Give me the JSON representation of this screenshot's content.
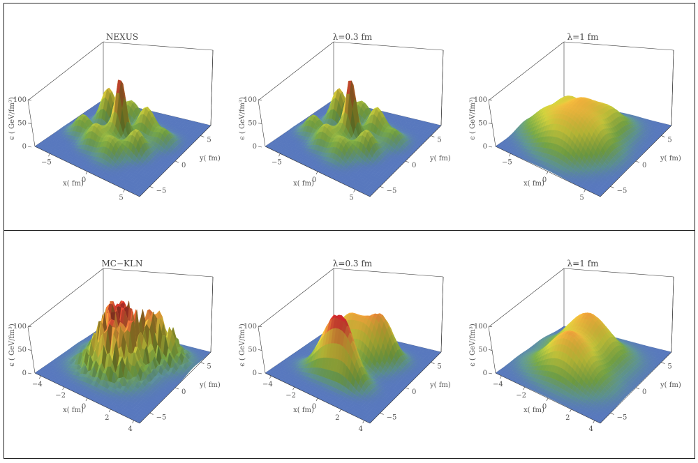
{
  "chart_data": [
    {
      "type": "surface",
      "title": "NEXUS",
      "xlabel": "x( fm)",
      "ylabel": "y( fm)",
      "zlabel": "ϵ ( GeV/fm³)",
      "x_ticks": [
        "−5",
        "0",
        "5"
      ],
      "y_ticks": [
        "5",
        "0",
        "−5"
      ],
      "z_ticks": [
        "100",
        "50",
        "0"
      ],
      "xlim": [
        -7,
        7
      ],
      "ylim": [
        -7,
        7
      ],
      "zlim": [
        0,
        125
      ],
      "peaks": [
        [
          -0.5,
          0.5,
          120,
          0.55
        ],
        [
          -3.5,
          2.5,
          75,
          0.8
        ],
        [
          -1.5,
          4,
          45,
          0.9
        ],
        [
          1.5,
          2.5,
          60,
          0.9
        ],
        [
          2.5,
          -1,
          50,
          0.9
        ],
        [
          -2,
          -2.5,
          45,
          0.9
        ],
        [
          0.5,
          -3,
          40,
          1.0
        ],
        [
          -4.5,
          -1,
          40,
          0.9
        ],
        [
          4,
          2,
          30,
          0.9
        ],
        [
          -1,
          -0.5,
          35,
          0.9
        ]
      ]
    },
    {
      "type": "surface",
      "title": "λ=0.3  fm",
      "xlabel": "x( fm)",
      "ylabel": "y( fm)",
      "zlabel": "ϵ ( GeV/fm³)",
      "x_ticks": [
        "−5",
        "0",
        "5"
      ],
      "y_ticks": [
        "5",
        "0",
        "−5"
      ],
      "z_ticks": [
        "100",
        "50",
        "0"
      ],
      "xlim": [
        -7,
        7
      ],
      "ylim": [
        -7,
        7
      ],
      "zlim": [
        0,
        125
      ],
      "peaks": [
        [
          -0.5,
          0.5,
          118,
          0.55
        ],
        [
          -3.5,
          2.5,
          74,
          0.8
        ],
        [
          -1.5,
          4,
          44,
          0.9
        ],
        [
          1.5,
          2.5,
          59,
          0.9
        ],
        [
          2.5,
          -1,
          49,
          0.9
        ],
        [
          -2,
          -2.5,
          44,
          0.9
        ],
        [
          0.5,
          -3,
          39,
          1.0
        ],
        [
          -4.5,
          -1,
          39,
          0.9
        ],
        [
          4,
          2,
          29,
          0.9
        ],
        [
          -1,
          -0.5,
          34,
          0.9
        ]
      ]
    },
    {
      "type": "surface",
      "title": "λ=1  fm",
      "xlabel": "x( fm)",
      "ylabel": "y( fm)",
      "zlabel": "ϵ ( GeV/fm³)",
      "x_ticks": [
        "−5",
        "0",
        "5"
      ],
      "y_ticks": [
        "5",
        "0",
        "−5"
      ],
      "z_ticks": [
        "100",
        "50",
        "0"
      ],
      "xlim": [
        -7,
        7
      ],
      "ylim": [
        -7,
        7
      ],
      "zlim": [
        0,
        125
      ],
      "peaks": [
        [
          -0.5,
          0.5,
          62,
          1.6
        ],
        [
          -3.5,
          2.5,
          50,
          1.6
        ],
        [
          1.5,
          3,
          48,
          1.6
        ],
        [
          2.5,
          -1,
          46,
          1.6
        ],
        [
          -2,
          -2.5,
          46,
          1.6
        ],
        [
          0.5,
          -3,
          44,
          1.6
        ],
        [
          -4.5,
          -1,
          40,
          1.6
        ]
      ]
    },
    {
      "type": "surface",
      "title": "MC−KLN",
      "xlabel": "x( fm)",
      "ylabel": "y( fm)",
      "zlabel": "ϵ ( GeV/fm³)",
      "x_ticks": [
        "−4",
        "−2",
        "0",
        "2",
        "4"
      ],
      "y_ticks": [
        "5",
        "0",
        "−5"
      ],
      "z_ticks": [
        "100",
        "50",
        "0"
      ],
      "xlim": [
        -4.5,
        4.5
      ],
      "ylim": [
        -7,
        7
      ],
      "zlim": [
        0,
        125
      ],
      "peaks": [
        [
          -0.8,
          1.5,
          95,
          1.3
        ],
        [
          1.6,
          3.5,
          85,
          1.2
        ],
        [
          -0.5,
          -2,
          85,
          1.3
        ],
        [
          0.2,
          0,
          70,
          1.2
        ]
      ],
      "noisy": true
    },
    {
      "type": "surface",
      "title": "λ=0.3  fm",
      "xlabel": "x( fm)",
      "ylabel": "y( fm)",
      "zlabel": "ϵ ( GeV/fm³)",
      "x_ticks": [
        "−4",
        "−2",
        "0",
        "2",
        "4"
      ],
      "y_ticks": [
        "5",
        "0",
        "−5"
      ],
      "z_ticks": [
        "100",
        "50",
        "0"
      ],
      "xlim": [
        -4.5,
        4.5
      ],
      "ylim": [
        -7,
        7
      ],
      "zlim": [
        0,
        125
      ],
      "peaks": [
        [
          -1.3,
          2.2,
          78,
          1.0
        ],
        [
          1.2,
          3.2,
          82,
          0.9
        ],
        [
          0.5,
          1.5,
          60,
          1.0
        ],
        [
          -0.3,
          -1.6,
          80,
          0.9
        ],
        [
          0.8,
          -2.6,
          70,
          0.9
        ],
        [
          -1.2,
          -2.4,
          60,
          1.0
        ]
      ]
    },
    {
      "type": "surface",
      "title": "λ=1  fm",
      "xlabel": "x( fm)",
      "ylabel": "y( fm)",
      "zlabel": "ϵ ( GeV/fm³)",
      "x_ticks": [
        "−4",
        "−2",
        "0",
        "2",
        "4"
      ],
      "y_ticks": [
        "5",
        "0",
        "−5"
      ],
      "z_ticks": [
        "100",
        "50",
        "0"
      ],
      "xlim": [
        -4.5,
        4.5
      ],
      "ylim": [
        -7,
        7
      ],
      "zlim": [
        0,
        125
      ],
      "peaks": [
        [
          -0.5,
          2.4,
          90,
          1.7
        ],
        [
          -0.2,
          -2.1,
          90,
          1.7
        ]
      ]
    }
  ]
}
